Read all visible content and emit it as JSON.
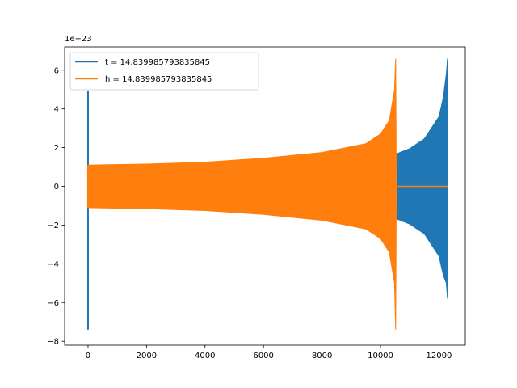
{
  "chart_data": {
    "type": "line",
    "title": "",
    "xlabel": "",
    "ylabel": "",
    "xlim": [
      -800,
      12900
    ],
    "ylim": [
      -8.2,
      7.2
    ],
    "y_offset_label": "1e−23",
    "x_ticks": [
      0,
      2000,
      4000,
      6000,
      8000,
      10000,
      12000
    ],
    "x_tick_labels": [
      "0",
      "2000",
      "4000",
      "6000",
      "8000",
      "10000",
      "12000"
    ],
    "y_ticks": [
      -8,
      -6,
      -4,
      -2,
      0,
      2,
      4,
      6
    ],
    "y_tick_labels": [
      "−8",
      "−6",
      "−4",
      "−2",
      "0",
      "2",
      "4",
      "6"
    ],
    "grid": false,
    "legend_position": "top-left",
    "series": [
      {
        "name": "t = 14.839985793835845",
        "color": "#1f77b4",
        "n_samples": 12290,
        "leading_spike": {
          "x": [
            0,
            10
          ],
          "ymin": -7.4,
          "ymax": 4.95
        },
        "envelope": {
          "x": [
            10,
            2000,
            4000,
            6000,
            8000,
            9500,
            10500,
            11000,
            11500,
            12000,
            12150,
            12250,
            12290
          ],
          "ymax": [
            0.0,
            0.0,
            0.0,
            0.0,
            0.0,
            0.0,
            1.65,
            1.95,
            2.45,
            3.6,
            4.6,
            5.8,
            6.6
          ],
          "ymin": [
            0.0,
            0.0,
            0.0,
            0.0,
            0.0,
            0.0,
            -1.65,
            -1.95,
            -2.45,
            -3.6,
            -4.6,
            -5.0,
            -5.8
          ]
        }
      },
      {
        "name": "h = 14.839985793835845",
        "color": "#ff7f0e",
        "n_samples": 12290,
        "leading_spike": {
          "x": [
            0,
            10
          ],
          "ymin": -1.1,
          "ymax": 1.1
        },
        "envelope": {
          "x": [
            10,
            2000,
            4000,
            6000,
            8000,
            9500,
            10000,
            10300,
            10480,
            10520,
            10540,
            12290
          ],
          "ymax": [
            1.1,
            1.15,
            1.25,
            1.45,
            1.75,
            2.2,
            2.7,
            3.4,
            5.0,
            6.6,
            0.0,
            0.0
          ],
          "ymin": [
            -1.1,
            -1.15,
            -1.25,
            -1.45,
            -1.75,
            -2.2,
            -2.7,
            -3.4,
            -5.0,
            -7.4,
            0.0,
            0.0
          ]
        }
      }
    ]
  }
}
